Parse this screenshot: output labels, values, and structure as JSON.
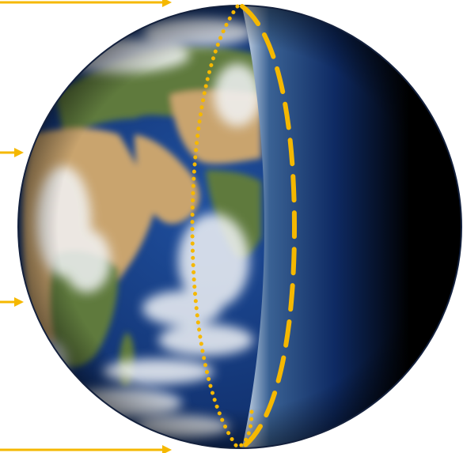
{
  "diagram": {
    "subject": "earth-day-night-terminator",
    "colors": {
      "sunlight_arrow": "#F5B800",
      "ocean_deep": "#0E2A63",
      "ocean_mid": "#1F4F9E",
      "desert": "#C9A46E",
      "vegetation": "#5E7A3C",
      "cloud": "#F2F4F7",
      "night": "#000000",
      "twilight_light": "#DCE6F2",
      "twilight_mid": "#3A6294",
      "outline": "#14213D"
    },
    "arrows": [
      {
        "name": "sunlight-arrow-top",
        "row": 1
      },
      {
        "name": "sunlight-arrow-upper",
        "row": 2
      },
      {
        "name": "sunlight-arrow-lower",
        "row": 3
      },
      {
        "name": "sunlight-arrow-bottom",
        "row": 4
      }
    ],
    "curves": [
      {
        "name": "terminator-dotted-curve",
        "style": "dotted"
      },
      {
        "name": "terminator-dashed-curve",
        "style": "dashed"
      }
    ]
  }
}
